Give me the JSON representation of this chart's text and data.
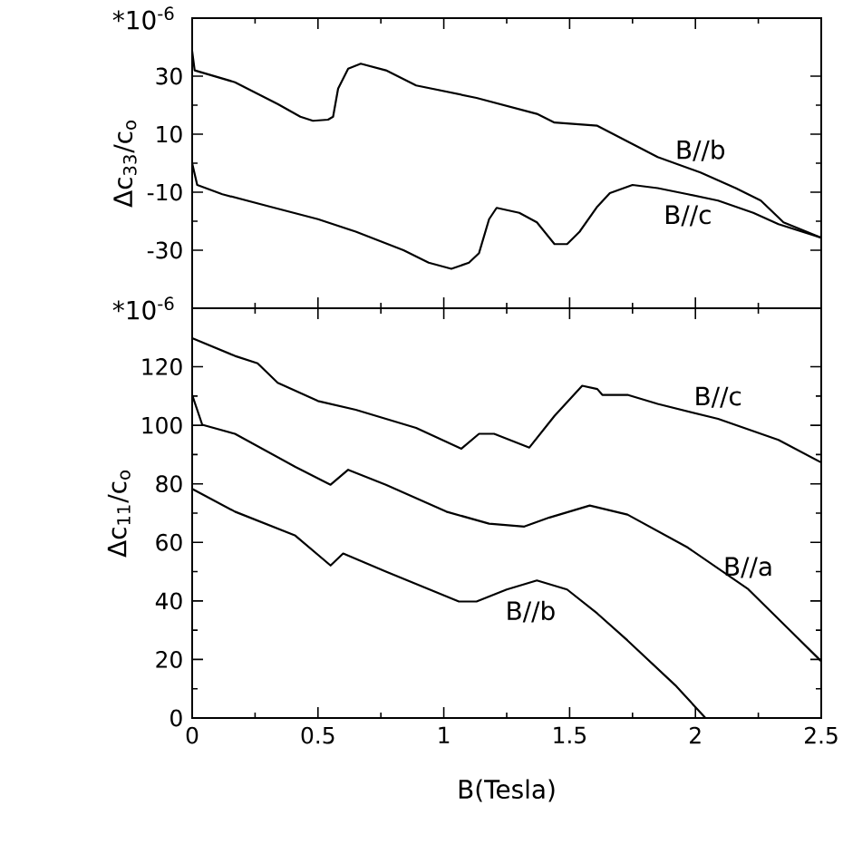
{
  "chart_data": [
    {
      "type": "line",
      "ylabel": "Δc$_{33}$/c$_{o}$",
      "annotations": [
        "*10$^{-6}$"
      ],
      "xlim": [
        0,
        2.5
      ],
      "xticks": [
        0,
        0.5,
        1,
        1.5,
        2,
        2.5
      ],
      "ylim": [
        -50,
        50
      ],
      "yticks": [
        -30,
        -10,
        10,
        30
      ],
      "tick_labels": "y",
      "color": "#000000",
      "series": [
        {
          "name": "B//b",
          "x": [
            0,
            0.01,
            0.17,
            0.34,
            0.43,
            0.48,
            0.54,
            0.56,
            0.58,
            0.62,
            0.67,
            0.77,
            0.89,
            1.13,
            1.37,
            1.44,
            1.61,
            1.73,
            1.85,
            2.02,
            2.16,
            2.26,
            2.35,
            2.5
          ],
          "values": [
            38.6,
            32,
            27.9,
            20.4,
            16,
            14.6,
            15,
            16,
            25.7,
            32.6,
            34.3,
            32,
            26.8,
            22.5,
            17,
            14,
            12.9,
            7.5,
            2.1,
            -3.2,
            -8.6,
            -12.9,
            -20.4,
            -25.7
          ]
        },
        {
          "name": "B//c",
          "x": [
            0,
            0.02,
            0.12,
            0.31,
            0.5,
            0.65,
            0.84,
            0.94,
            1.03,
            1.1,
            1.14,
            1.18,
            1.21,
            1.3,
            1.37,
            1.44,
            1.49,
            1.54,
            1.61,
            1.66,
            1.75,
            1.85,
            1.97,
            2.09,
            2.23,
            2.33,
            2.5
          ],
          "values": [
            0,
            -7.5,
            -10.7,
            -15,
            -19.3,
            -23.6,
            -30,
            -34.3,
            -36.4,
            -34.3,
            -31,
            -19.3,
            -15.4,
            -17.1,
            -20.4,
            -27.9,
            -27.9,
            -23.6,
            -15,
            -10.3,
            -7.5,
            -8.6,
            -10.7,
            -12.9,
            -17.1,
            -21,
            -25.7
          ]
        }
      ]
    },
    {
      "type": "line",
      "xlabel": "B(Tesla)",
      "ylabel": "Δc$_{11}$/c$_{o}$",
      "annotations": [
        "*10$^{-6}$"
      ],
      "xlim": [
        0,
        2.5
      ],
      "xticks": [
        0,
        0.5,
        1,
        1.5,
        2,
        2.5
      ],
      "ylim": [
        0,
        140
      ],
      "yticks": [
        0,
        20,
        40,
        60,
        80,
        100,
        120
      ],
      "color": "#000000",
      "legend": "right",
      "series": [
        {
          "name": "B//c",
          "x": [
            0,
            0.17,
            0.26,
            0.34,
            0.5,
            0.65,
            0.89,
            1.07,
            1.14,
            1.2,
            1.34,
            1.44,
            1.55,
            1.61,
            1.63,
            1.73,
            1.85,
            2.09,
            2.33,
            2.5
          ],
          "values": [
            129.8,
            123.7,
            121.2,
            114.5,
            108.3,
            105.3,
            99.1,
            92,
            97.1,
            97.1,
            92.4,
            103.2,
            113.5,
            112.4,
            110.4,
            110.4,
            107.3,
            102.2,
            95,
            87.3
          ]
        },
        {
          "name": "B//a",
          "x": [
            0,
            0.04,
            0.17,
            0.41,
            0.55,
            0.62,
            0.77,
            1.01,
            1.18,
            1.32,
            1.42,
            1.58,
            1.73,
            1.97,
            2.21,
            2.38,
            2.5
          ],
          "values": [
            110.4,
            100.2,
            97.1,
            85.8,
            79.7,
            84.8,
            79.7,
            70.5,
            66.4,
            65.4,
            68.5,
            72.6,
            69.5,
            58.2,
            44,
            29.6,
            19.4
          ]
        },
        {
          "name": "B//b",
          "x": [
            0,
            0.17,
            0.41,
            0.55,
            0.6,
            0.77,
            1.06,
            1.13,
            1.25,
            1.37,
            1.49,
            1.61,
            1.73,
            1.92,
            2.04
          ],
          "values": [
            78.3,
            70.5,
            62.3,
            52.1,
            56.2,
            50,
            39.8,
            39.8,
            43.9,
            47,
            43.9,
            35.7,
            26.5,
            11.2,
            0
          ]
        }
      ]
    }
  ]
}
